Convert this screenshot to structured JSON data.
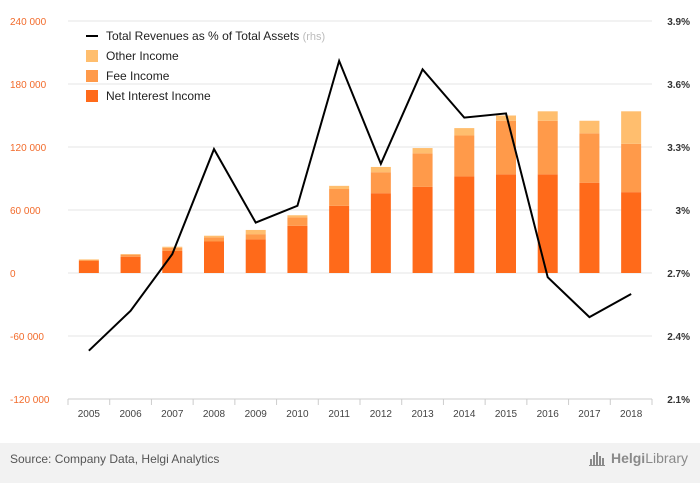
{
  "chart_data": {
    "type": "bar",
    "stacked": true,
    "categories": [
      "2005",
      "2006",
      "2007",
      "2008",
      "2009",
      "2010",
      "2011",
      "2012",
      "2013",
      "2014",
      "2015",
      "2016",
      "2017",
      "2018"
    ],
    "series": [
      {
        "name": "Net Interest Income",
        "color": "#ff6a1a",
        "values": [
          11500,
          15500,
          21000,
          30000,
          32000,
          45000,
          64000,
          76000,
          82000,
          92000,
          94000,
          94000,
          86000,
          77000
        ]
      },
      {
        "name": "Fee Income",
        "color": "#ff9a4a",
        "values": [
          1000,
          2000,
          3000,
          4000,
          5000,
          8000,
          16000,
          20000,
          32000,
          39000,
          51000,
          51000,
          47000,
          46000
        ]
      },
      {
        "name": "Other Income",
        "color": "#ffbe6e",
        "values": [
          500,
          500,
          1000,
          1500,
          4000,
          2000,
          3000,
          5000,
          5000,
          7000,
          5000,
          9000,
          12000,
          31000
        ]
      }
    ],
    "line": {
      "name": "Total Revenues as % of Total Assets",
      "axis_suffix": "(rhs)",
      "color": "#000000",
      "values": [
        2.33,
        2.52,
        2.79,
        3.29,
        2.94,
        3.02,
        3.71,
        3.22,
        3.67,
        3.44,
        3.46,
        2.68,
        2.49,
        2.6
      ]
    },
    "left_axis": {
      "min": -120000,
      "max": 240000,
      "step": 60000,
      "ticks": [
        "-120 000",
        "-60 000",
        "0",
        "60 000",
        "120 000",
        "180 000",
        "240 000"
      ]
    },
    "right_axis": {
      "min": 2.1,
      "max": 3.9,
      "step": 0.3,
      "ticks": [
        "2.1%",
        "2.4%",
        "2.7%",
        "3%",
        "3.3%",
        "3.6%",
        "3.9%"
      ]
    },
    "legend_position": "top-left",
    "grid": true
  },
  "footer": {
    "source": "Source: Company Data, Helgi Analytics",
    "brand_part1": "Helgi",
    "brand_part2": "Library"
  }
}
